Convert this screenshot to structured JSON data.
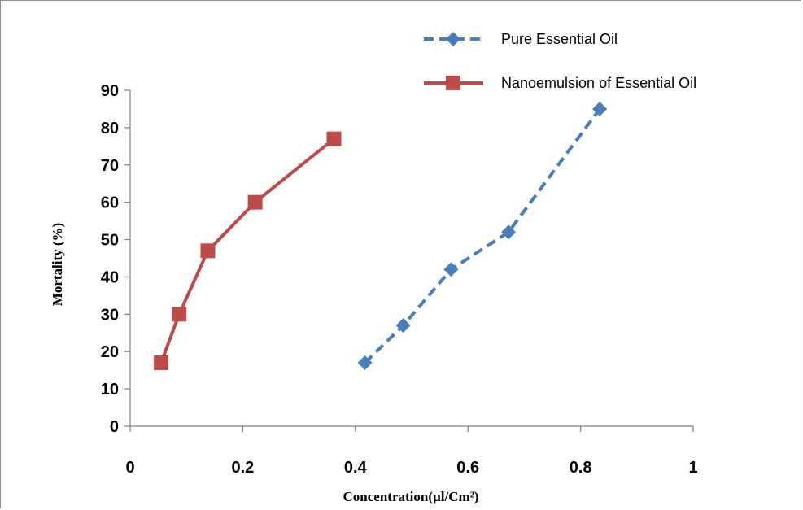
{
  "chart_data": {
    "type": "line",
    "xlabel": "Concentration(µl/Cm²)",
    "ylabel": "Mortality (%)",
    "xlim": [
      0,
      1
    ],
    "ylim": [
      0,
      90
    ],
    "xticks": [
      0,
      0.2,
      0.4,
      0.6,
      0.8,
      1
    ],
    "xtick_labels": [
      "0",
      "0.2",
      "0.4",
      "0.6",
      "0.8",
      "1"
    ],
    "yticks": [
      0,
      10,
      20,
      30,
      40,
      50,
      60,
      70,
      80,
      90
    ],
    "ytick_labels": [
      "0",
      "10",
      "20",
      "30",
      "40",
      "50",
      "60",
      "70",
      "80",
      "90"
    ],
    "grid": false,
    "legend_position": "top-right",
    "series": [
      {
        "name": "Pure Essential Oil",
        "color": "#4a7ebb",
        "line_style": "dashed",
        "marker": "diamond",
        "x": [
          0.417,
          0.485,
          0.57,
          0.672,
          0.834
        ],
        "y": [
          17,
          27,
          42,
          52,
          85
        ]
      },
      {
        "name": "Nanoemulsion of Essential Oil",
        "color": "#be4b48",
        "line_style": "solid",
        "marker": "square",
        "x": [
          0.055,
          0.087,
          0.138,
          0.222,
          0.362
        ],
        "y": [
          17,
          30,
          47,
          60,
          77
        ]
      }
    ]
  }
}
